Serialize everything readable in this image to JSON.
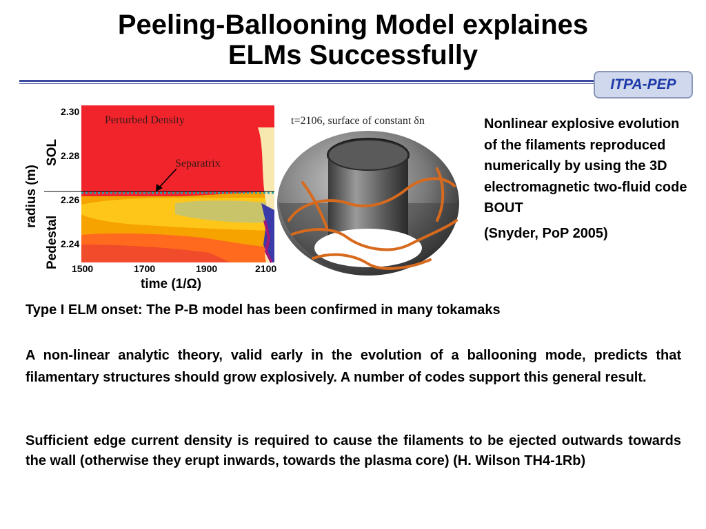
{
  "slide": {
    "title_line1": "Peeling-Ballooning Model explaines",
    "title_line2": "ELMs Successfully",
    "badge": "ITPA-PEP",
    "figure": {
      "plot": {
        "label_perturbed": "Perturbed Density",
        "label_separatrix": "Separatrix",
        "y_ticks": [
          "2.30",
          "2.28",
          "2.26",
          "2.24"
        ],
        "x_ticks": [
          "1500",
          "1700",
          "1900",
          "2100"
        ],
        "ylabel": "radius (m)",
        "y_region_top": "SOL",
        "y_region_bottom": "Pedestal",
        "xlabel": "time (1/Ω)"
      },
      "torus_caption": "t=2106, surface of constant δn"
    },
    "side_text": "Nonlinear explosive evolution of the filaments reproduced numerically by using the 3D electromagnetic two-fluid code BOUT",
    "side_cite": "(Snyder, PoP 2005)",
    "para1": "Type I ELM onset: The P-B model has been confirmed in many tokamaks",
    "para2": "A non-linear analytic theory, valid early in the evolution of a ballooning mode, predicts that filamentary structures should grow explosively. A number of codes support this general result.",
    "para3": "Sufficient edge current density is required to cause the filaments to be ejected outwards towards the wall (otherwise they erupt inwards, towards the plasma core) (H. Wilson TH4-1Rb)",
    "colors": {
      "accent": "#1d3aa8",
      "rule": "#3b4a9e",
      "badge_bg": "#cfd8ec"
    }
  }
}
